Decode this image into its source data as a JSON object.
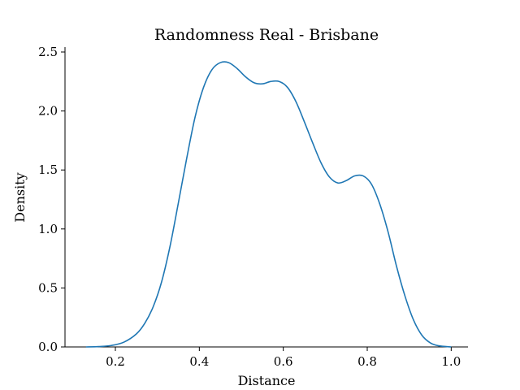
{
  "chart_data": {
    "type": "line",
    "title": "Randomness Real - Brisbane",
    "xlabel": "Distance",
    "ylabel": "Density",
    "xlim": [
      0.08,
      1.04
    ],
    "ylim": [
      0.0,
      2.5
    ],
    "x_ticks": [
      0.2,
      0.4,
      0.6,
      0.8,
      1.0
    ],
    "x_tick_labels": [
      "0.2",
      "0.4",
      "0.6",
      "0.8",
      "1.0"
    ],
    "y_ticks": [
      0.0,
      0.5,
      1.0,
      1.5,
      2.0,
      2.5
    ],
    "y_tick_labels": [
      "0.0",
      "0.5",
      "1.0",
      "1.5",
      "2.0",
      "2.5"
    ],
    "grid": false,
    "series": [
      {
        "color": "#1f77b4",
        "x": [
          0.13,
          0.16,
          0.19,
          0.22,
          0.25,
          0.27,
          0.29,
          0.31,
          0.33,
          0.35,
          0.37,
          0.39,
          0.41,
          0.43,
          0.45,
          0.47,
          0.49,
          0.51,
          0.53,
          0.55,
          0.57,
          0.59,
          0.61,
          0.63,
          0.65,
          0.67,
          0.69,
          0.71,
          0.73,
          0.75,
          0.77,
          0.79,
          0.81,
          0.83,
          0.85,
          0.87,
          0.89,
          0.91,
          0.93,
          0.95,
          0.97,
          1.0
        ],
        "y": [
          0.0,
          0.003,
          0.012,
          0.04,
          0.11,
          0.2,
          0.34,
          0.55,
          0.85,
          1.22,
          1.6,
          1.95,
          2.2,
          2.35,
          2.41,
          2.41,
          2.36,
          2.29,
          2.24,
          2.23,
          2.25,
          2.25,
          2.2,
          2.08,
          1.91,
          1.73,
          1.56,
          1.44,
          1.39,
          1.41,
          1.45,
          1.45,
          1.38,
          1.21,
          0.97,
          0.68,
          0.43,
          0.23,
          0.1,
          0.035,
          0.01,
          0.0
        ]
      }
    ]
  }
}
